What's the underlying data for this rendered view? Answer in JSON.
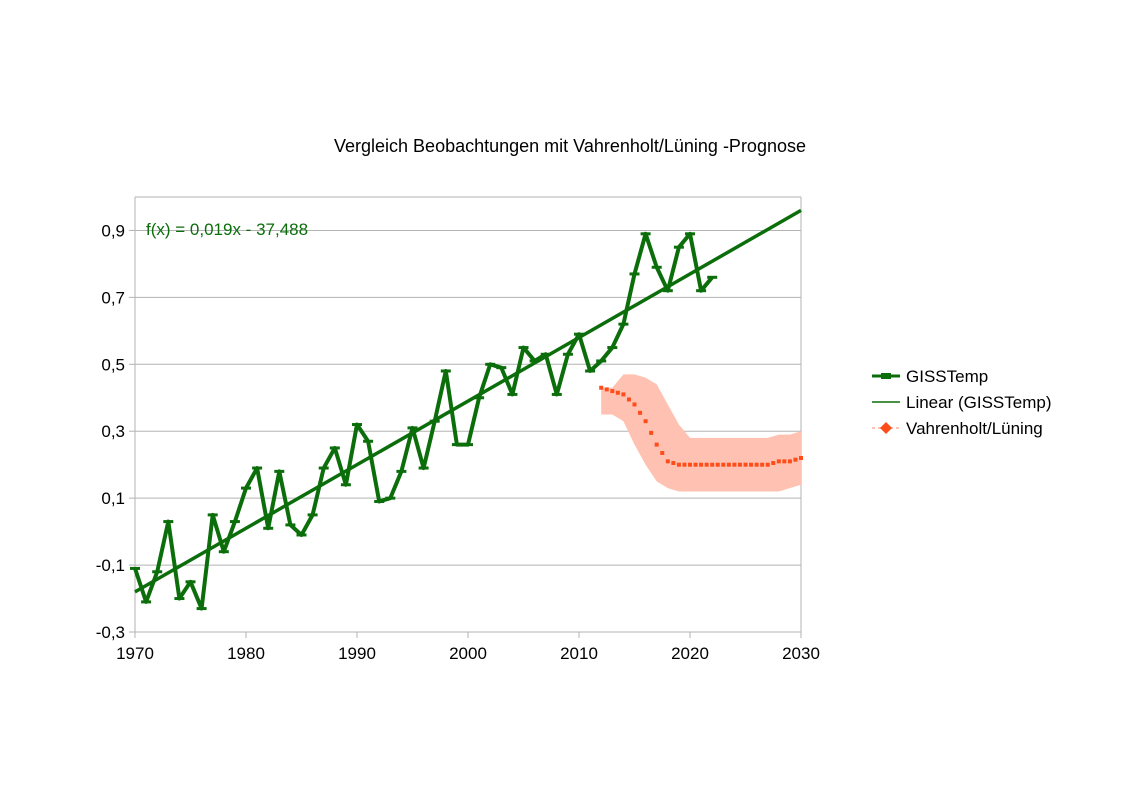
{
  "chart_data": {
    "type": "line",
    "title": "Vergleich Beobachtungen mit Vahrenholt/Lüning -Prognose",
    "xlabel": "",
    "ylabel": "",
    "xlim": [
      1970,
      2030
    ],
    "ylim": [
      -0.3,
      1.0
    ],
    "xticks": [
      1970,
      1980,
      1990,
      2000,
      2010,
      2020,
      2030
    ],
    "xtick_labels": [
      "1970",
      "1980",
      "1990",
      "2000",
      "2010",
      "2020",
      "2030"
    ],
    "yticks": [
      -0.3,
      -0.1,
      0.1,
      0.3,
      0.5,
      0.7,
      0.9
    ],
    "ytick_labels": [
      "-0,3",
      "-0,1",
      "0,1",
      "0,3",
      "0,5",
      "0,7",
      "0,9"
    ],
    "grid": "horizontal",
    "legend_position": "right",
    "trend_equation": "f(x) = 0,019x - 37,488",
    "trend": {
      "slope": 0.019,
      "intercept": -37.488
    },
    "colors": {
      "observed": "#0b6e0b",
      "forecast": "#ff4d1a",
      "band": "#ffc2b2"
    },
    "series": [
      {
        "name": "GISSTemp",
        "x": [
          1970,
          1971,
          1972,
          1973,
          1974,
          1975,
          1976,
          1977,
          1978,
          1979,
          1980,
          1981,
          1982,
          1983,
          1984,
          1985,
          1986,
          1987,
          1988,
          1989,
          1990,
          1991,
          1992,
          1993,
          1994,
          1995,
          1996,
          1997,
          1998,
          1999,
          2000,
          2001,
          2002,
          2003,
          2004,
          2005,
          2006,
          2007,
          2008,
          2009,
          2010,
          2011,
          2012,
          2013,
          2014,
          2015,
          2016,
          2017,
          2018,
          2019,
          2020,
          2021,
          2022
        ],
        "y": [
          -0.11,
          -0.21,
          -0.12,
          0.03,
          -0.2,
          -0.15,
          -0.23,
          0.05,
          -0.06,
          0.03,
          0.13,
          0.19,
          0.01,
          0.18,
          0.02,
          -0.01,
          0.05,
          0.19,
          0.25,
          0.14,
          0.32,
          0.27,
          0.09,
          0.1,
          0.18,
          0.31,
          0.19,
          0.33,
          0.48,
          0.26,
          0.26,
          0.4,
          0.5,
          0.49,
          0.41,
          0.55,
          0.51,
          0.53,
          0.41,
          0.53,
          0.59,
          0.48,
          0.51,
          0.55,
          0.62,
          0.77,
          0.89,
          0.79,
          0.72,
          0.85,
          0.89,
          0.72,
          0.76
        ]
      },
      {
        "name": "Linear (GISSTemp)",
        "x": [
          1970,
          2030
        ],
        "y": [
          -0.18,
          0.96
        ]
      },
      {
        "name": "Vahrenholt/Lüning",
        "x": [
          2012,
          2013,
          2014,
          2015,
          2016,
          2017,
          2018,
          2019,
          2020,
          2021,
          2022,
          2023,
          2024,
          2025,
          2026,
          2027,
          2028,
          2029,
          2030
        ],
        "y": [
          0.43,
          0.42,
          0.41,
          0.38,
          0.33,
          0.26,
          0.21,
          0.2,
          0.2,
          0.2,
          0.2,
          0.2,
          0.2,
          0.2,
          0.2,
          0.2,
          0.21,
          0.21,
          0.22
        ],
        "band_upper": [
          0.43,
          0.43,
          0.47,
          0.47,
          0.46,
          0.44,
          0.38,
          0.32,
          0.28,
          0.28,
          0.28,
          0.28,
          0.28,
          0.28,
          0.28,
          0.28,
          0.29,
          0.29,
          0.3
        ],
        "band_lower": [
          0.35,
          0.35,
          0.33,
          0.26,
          0.2,
          0.15,
          0.13,
          0.12,
          0.12,
          0.12,
          0.12,
          0.12,
          0.12,
          0.12,
          0.12,
          0.12,
          0.12,
          0.13,
          0.14
        ]
      }
    ]
  }
}
